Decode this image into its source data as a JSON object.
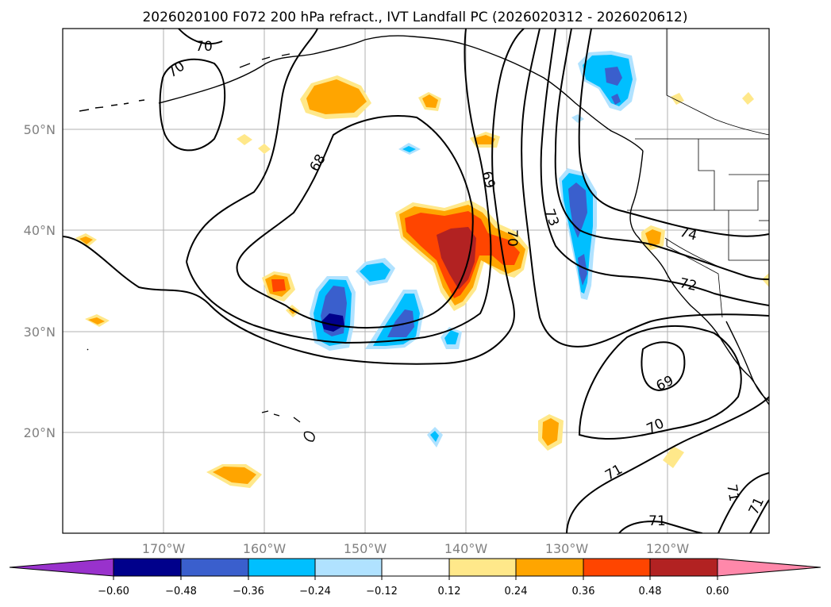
{
  "title": "2026020100 F072 200 hPa refract., IVT Landfall PC (2026020312 - 2026020612)",
  "x_ticks": [
    "170°W",
    "160°W",
    "150°W",
    "140°W",
    "130°W",
    "120°W"
  ],
  "y_ticks": [
    "50°N",
    "40°N",
    "30°N",
    "20°N"
  ],
  "colorbar": {
    "labels": [
      "−0.60",
      "−0.48",
      "−0.36",
      "−0.24",
      "−0.12",
      "0.12",
      "0.24",
      "0.36",
      "0.48",
      "0.60"
    ],
    "colors": [
      "#9932cc",
      "#00008b",
      "#3a5fcd",
      "#00bfff",
      "#b0e2ff",
      "#ffffff",
      "#ffe88a",
      "#ffa500",
      "#ff4500",
      "#b22222",
      "#ff88aa"
    ]
  },
  "contour_labels": [
    "70",
    "70",
    "68",
    "69",
    "70",
    "73",
    "74",
    "72",
    "69",
    "70",
    "71",
    "71",
    "71",
    "71"
  ]
}
